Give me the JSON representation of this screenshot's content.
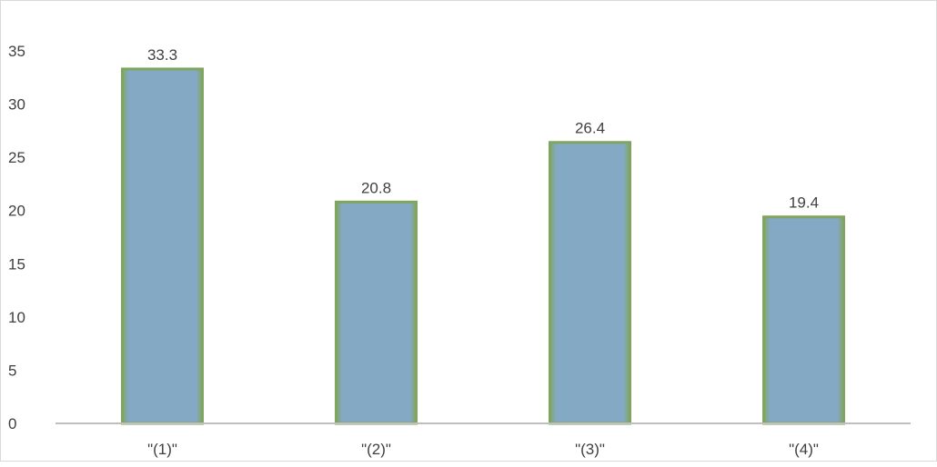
{
  "chart_data": {
    "type": "bar",
    "categories": [
      "\"(1)\"",
      "\"(2)\"",
      "\"(3)\"",
      "\"(4)\""
    ],
    "values": [
      33.3,
      20.8,
      26.4,
      19.4
    ],
    "data_labels": [
      "33.3",
      "20.8",
      "26.4",
      "19.4"
    ],
    "title": "",
    "xlabel": "",
    "ylabel": "",
    "ylim": [
      0,
      35
    ],
    "yticks": [
      0,
      5,
      10,
      15,
      20,
      25,
      30,
      35
    ],
    "ytick_labels": [
      "0",
      "5",
      "10",
      "15",
      "20",
      "25",
      "30",
      "35"
    ],
    "grid": false,
    "legend": "none",
    "colors": {
      "bar_fill": "#84a9c4",
      "bar_border": "#7fa55f",
      "axis": "#bfbfbf",
      "text": "#404040",
      "chart_border": "#d9d9d9"
    }
  }
}
